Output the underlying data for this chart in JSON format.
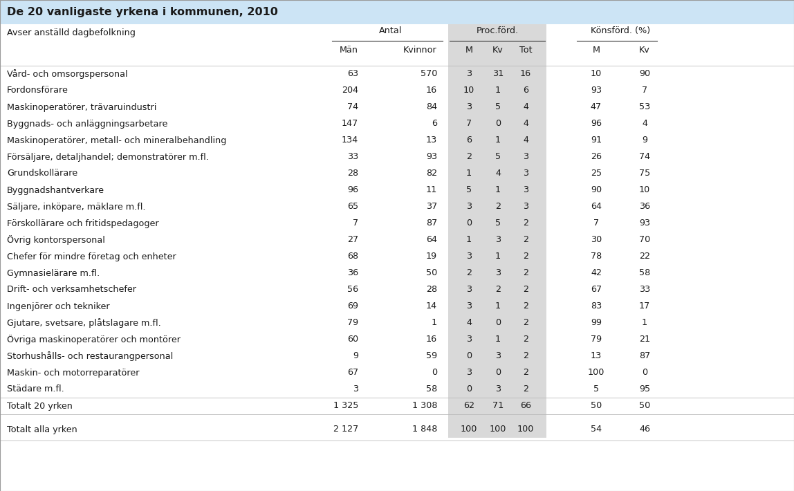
{
  "title": "De 20 vanligaste yrkena i kommunen, 2010",
  "rows": [
    [
      "Vård- och omsorgspersonal",
      "63",
      "570",
      "3",
      "31",
      "16",
      "10",
      "90"
    ],
    [
      "Fordonsförare",
      "204",
      "16",
      "10",
      "1",
      "6",
      "93",
      "7"
    ],
    [
      "Maskinoperatörer, trävaruindustri",
      "74",
      "84",
      "3",
      "5",
      "4",
      "47",
      "53"
    ],
    [
      "Byggnads- och anläggningsarbetare",
      "147",
      "6",
      "7",
      "0",
      "4",
      "96",
      "4"
    ],
    [
      "Maskinoperatörer, metall- och mineralbehandling",
      "134",
      "13",
      "6",
      "1",
      "4",
      "91",
      "9"
    ],
    [
      "Försäljare, detaljhandel; demonstratörer m.fl.",
      "33",
      "93",
      "2",
      "5",
      "3",
      "26",
      "74"
    ],
    [
      "Grundskollärare",
      "28",
      "82",
      "1",
      "4",
      "3",
      "25",
      "75"
    ],
    [
      "Byggnadshantverkare",
      "96",
      "11",
      "5",
      "1",
      "3",
      "90",
      "10"
    ],
    [
      "Säljare, inköpare, mäklare m.fl.",
      "65",
      "37",
      "3",
      "2",
      "3",
      "64",
      "36"
    ],
    [
      "Förskollärare och fritidspedagoger",
      "7",
      "87",
      "0",
      "5",
      "2",
      "7",
      "93"
    ],
    [
      "Övrig kontorspersonal",
      "27",
      "64",
      "1",
      "3",
      "2",
      "30",
      "70"
    ],
    [
      "Chefer för mindre företag och enheter",
      "68",
      "19",
      "3",
      "1",
      "2",
      "78",
      "22"
    ],
    [
      "Gymnasielärare m.fl.",
      "36",
      "50",
      "2",
      "3",
      "2",
      "42",
      "58"
    ],
    [
      "Drift- och verksamhetschefer",
      "56",
      "28",
      "3",
      "2",
      "2",
      "67",
      "33"
    ],
    [
      "Ingenjörer och tekniker",
      "69",
      "14",
      "3",
      "1",
      "2",
      "83",
      "17"
    ],
    [
      "Gjutare, svetsare, plåtslagare m.fl.",
      "79",
      "1",
      "4",
      "0",
      "2",
      "99",
      "1"
    ],
    [
      "Övriga maskinoperatörer och montörer",
      "60",
      "16",
      "3",
      "1",
      "2",
      "79",
      "21"
    ],
    [
      "Storhushålls- och restaurangpersonal",
      "9",
      "59",
      "0",
      "3",
      "2",
      "13",
      "87"
    ],
    [
      "Maskin- och motorreparatörer",
      "67",
      "0",
      "3",
      "0",
      "2",
      "100",
      "0"
    ],
    [
      "Städare m.fl.",
      "3",
      "58",
      "0",
      "3",
      "2",
      "5",
      "95"
    ]
  ],
  "totalt_20": [
    "Totalt 20 yrken",
    "1 325",
    "1 308",
    "62",
    "71",
    "66",
    "50",
    "50"
  ],
  "totalt_alla": [
    "Totalt alla yrken",
    "2 127",
    "1 848",
    "100",
    "100",
    "100",
    "54",
    "46"
  ],
  "title_bg": "#cce4f5",
  "gray_bg": "#d9d9d9",
  "white_bg": "#ffffff",
  "font_size": 9.2,
  "title_font_size": 11.5
}
